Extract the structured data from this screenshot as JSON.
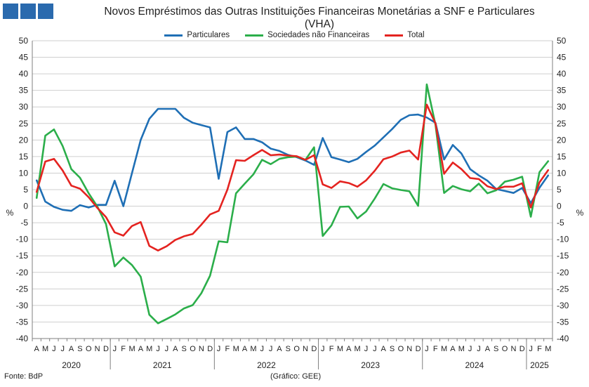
{
  "header": {
    "title": "Novos Empréstimos das Outras Instituições Financeiras Monetárias a SNF e Particulares",
    "subtitle": "(VHA)"
  },
  "footer": {
    "source": "Fonte: BdP",
    "credit": "(Gráfico: GEE)"
  },
  "colors": {
    "logo": "#2a6aae",
    "grid": "#cfcfcf",
    "axis": "#7f7f7f"
  },
  "chart_data": {
    "type": "line",
    "title": "Novos Empréstimos das Outras Instituições Financeiras Monetárias a SNF e Particulares",
    "subtitle": "(VHA)",
    "ylabel_left": "%",
    "ylabel_right": "%",
    "ylim": [
      -40,
      50
    ],
    "yticks": [
      50,
      45,
      40,
      35,
      30,
      25,
      20,
      15,
      10,
      5,
      0,
      -5,
      -10,
      -15,
      -20,
      -25,
      -30,
      -35,
      -40
    ],
    "grid": "horizontal",
    "legend_position": "top",
    "months": [
      "A",
      "M",
      "J",
      "J",
      "A",
      "S",
      "O",
      "N",
      "D",
      "J",
      "F",
      "M",
      "A",
      "M",
      "J",
      "J",
      "A",
      "S",
      "O",
      "N",
      "D",
      "J",
      "F",
      "M",
      "A",
      "M",
      "J",
      "J",
      "A",
      "S",
      "O",
      "N",
      "D",
      "J",
      "F",
      "M",
      "A",
      "M",
      "J",
      "J",
      "A",
      "S",
      "O",
      "N",
      "D",
      "J",
      "F",
      "M",
      "A",
      "M",
      "J",
      "J",
      "A",
      "S",
      "O",
      "N",
      "D",
      "J",
      "F",
      "M"
    ],
    "years": [
      {
        "label": "2020",
        "start": 0,
        "count": 9
      },
      {
        "label": "2021",
        "start": 9,
        "count": 12
      },
      {
        "label": "2022",
        "start": 21,
        "count": 12
      },
      {
        "label": "2023",
        "start": 33,
        "count": 12
      },
      {
        "label": "2024",
        "start": 45,
        "count": 12
      },
      {
        "label": "2025",
        "start": 57,
        "count": 3
      }
    ],
    "series": [
      {
        "name": "Particulares",
        "color": "#1f6fb5",
        "values": [
          7.8,
          1.4,
          -0.2,
          -1.1,
          -1.4,
          0.3,
          -0.4,
          0.4,
          0.4,
          7.7,
          0.0,
          10.0,
          20.0,
          26.4,
          29.4,
          29.4,
          29.4,
          26.7,
          25.2,
          24.5,
          23.8,
          8.3,
          22.4,
          23.8,
          20.3,
          20.3,
          19.3,
          17.4,
          16.7,
          15.5,
          14.8,
          13.8,
          12.5,
          20.6,
          14.8,
          14.1,
          13.3,
          14.3,
          16.4,
          18.3,
          20.8,
          23.3,
          26.1,
          27.5,
          27.7,
          26.8,
          25.2,
          14.1,
          18.5,
          15.9,
          11.2,
          9.3,
          7.7,
          5.2,
          4.6,
          4.0,
          5.5,
          0.9,
          5.6,
          9.3
        ]
      },
      {
        "name": "Sociedades não Financeiras",
        "color": "#2bae4a",
        "values": [
          2.5,
          21.3,
          23.2,
          18.2,
          11.2,
          8.6,
          3.9,
          -0.1,
          -5.4,
          -18.2,
          -15.5,
          -17.8,
          -21.3,
          -32.8,
          -35.4,
          -34.1,
          -32.7,
          -30.9,
          -29.9,
          -26.3,
          -21.0,
          -10.6,
          -10.9,
          3.9,
          6.8,
          9.6,
          14.0,
          12.7,
          14.3,
          14.8,
          15.0,
          14.0,
          17.8,
          -9.0,
          -5.8,
          -0.2,
          -0.1,
          -3.7,
          -1.6,
          2.3,
          6.7,
          5.4,
          4.9,
          4.5,
          0.1,
          36.8,
          24.6,
          4.0,
          6.1,
          5.1,
          4.5,
          6.8,
          3.9,
          4.8,
          7.4,
          8.0,
          8.9,
          -3.2,
          10.3,
          13.6
        ]
      },
      {
        "name": "Total",
        "color": "#e42320",
        "values": [
          4.3,
          13.5,
          14.3,
          10.8,
          6.2,
          5.3,
          2.7,
          -0.5,
          -3.3,
          -7.9,
          -8.9,
          -6.0,
          -4.8,
          -12.0,
          -13.4,
          -12.1,
          -10.2,
          -9.1,
          -8.4,
          -5.6,
          -2.5,
          -1.4,
          5.0,
          13.9,
          13.7,
          15.4,
          17.0,
          15.4,
          15.6,
          15.3,
          15.1,
          14.0,
          15.4,
          6.6,
          5.5,
          7.5,
          7.0,
          5.9,
          7.8,
          10.7,
          14.2,
          15.0,
          16.2,
          16.8,
          14.1,
          30.7,
          25.0,
          9.8,
          13.2,
          11.2,
          8.5,
          8.2,
          6.0,
          5.2,
          5.9,
          5.9,
          6.9,
          -0.4,
          7.2,
          10.9
        ]
      }
    ]
  }
}
